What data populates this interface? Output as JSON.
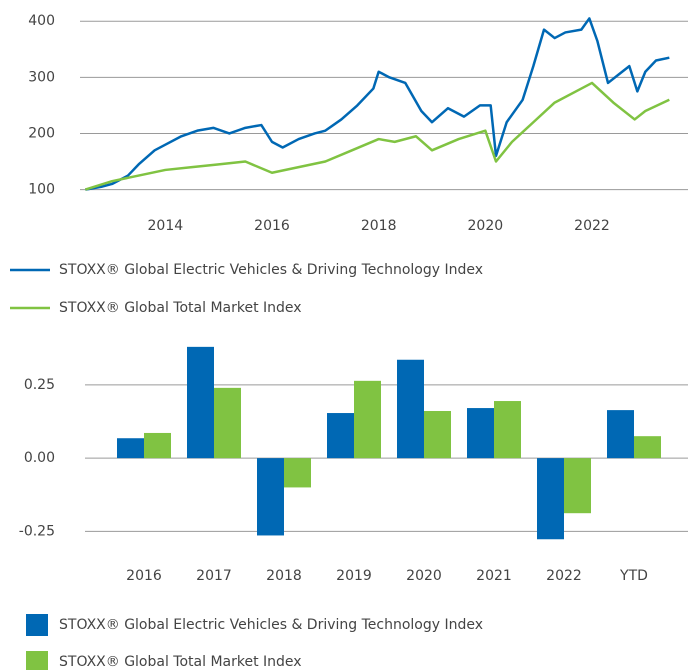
{
  "chart_data": [
    {
      "type": "line",
      "xlim": [
        2012.4,
        2023.8
      ],
      "xticks": [
        2014,
        2016,
        2018,
        2020,
        2022
      ],
      "ylim": [
        85,
        420
      ],
      "yticks": [
        100,
        200,
        300,
        400
      ],
      "grid": true,
      "legend": "bottom",
      "series": [
        {
          "name": "STOXX® Global Electric Vehicles & Driving Technology Index",
          "color": "#0068b4",
          "x": [
            2012.5,
            2012.8,
            2013.0,
            2013.3,
            2013.5,
            2013.8,
            2014.0,
            2014.3,
            2014.6,
            2014.9,
            2015.2,
            2015.5,
            2015.8,
            2016.0,
            2016.2,
            2016.5,
            2016.8,
            2017.0,
            2017.3,
            2017.6,
            2017.9,
            2018.0,
            2018.2,
            2018.5,
            2018.8,
            2019.0,
            2019.3,
            2019.6,
            2019.9,
            2020.1,
            2020.2,
            2020.4,
            2020.7,
            2020.9,
            2021.1,
            2021.3,
            2021.5,
            2021.8,
            2021.95,
            2022.1,
            2022.3,
            2022.5,
            2022.7,
            2022.85,
            2023.0,
            2023.2,
            2023.45
          ],
          "values": [
            100,
            105,
            110,
            125,
            145,
            170,
            180,
            195,
            205,
            210,
            200,
            210,
            215,
            185,
            175,
            190,
            200,
            205,
            225,
            250,
            280,
            310,
            300,
            290,
            240,
            220,
            245,
            230,
            250,
            250,
            160,
            220,
            260,
            320,
            385,
            370,
            380,
            385,
            405,
            365,
            290,
            305,
            320,
            275,
            310,
            330,
            335
          ]
        },
        {
          "name": "STOXX® Global Total Market Index",
          "color": "#80c342",
          "x": [
            2012.5,
            2013.0,
            2013.5,
            2014.0,
            2014.5,
            2015.0,
            2015.5,
            2016.0,
            2016.5,
            2017.0,
            2017.5,
            2018.0,
            2018.3,
            2018.7,
            2019.0,
            2019.5,
            2020.0,
            2020.2,
            2020.5,
            2020.9,
            2021.3,
            2021.8,
            2022.0,
            2022.4,
            2022.8,
            2023.0,
            2023.45
          ],
          "values": [
            100,
            115,
            125,
            135,
            140,
            145,
            150,
            130,
            140,
            150,
            170,
            190,
            185,
            195,
            170,
            190,
            205,
            150,
            185,
            220,
            255,
            280,
            290,
            255,
            225,
            240,
            260
          ]
        }
      ]
    },
    {
      "type": "bar",
      "categories": [
        "2016",
        "2017",
        "2018",
        "2019",
        "2020",
        "2021",
        "2022",
        "YTD"
      ],
      "ylim": [
        -0.3,
        0.4
      ],
      "yticks": [
        0.25,
        {
          "value": 0,
          "label": "0.00"
        },
        -0.25
      ],
      "grid": true,
      "legend": "bottom",
      "series": [
        {
          "name": "STOXX® Global Electric Vehicles & Driving Technology Index",
          "color": "#0068b4",
          "values": [
            0.068,
            0.38,
            -0.264,
            0.154,
            0.336,
            0.171,
            -0.277,
            0.164
          ]
        },
        {
          "name": "STOXX® Global Total Market Index",
          "color": "#80c342",
          "values": [
            0.086,
            0.24,
            -0.1,
            0.264,
            0.161,
            0.195,
            -0.188,
            0.075
          ]
        }
      ]
    }
  ]
}
